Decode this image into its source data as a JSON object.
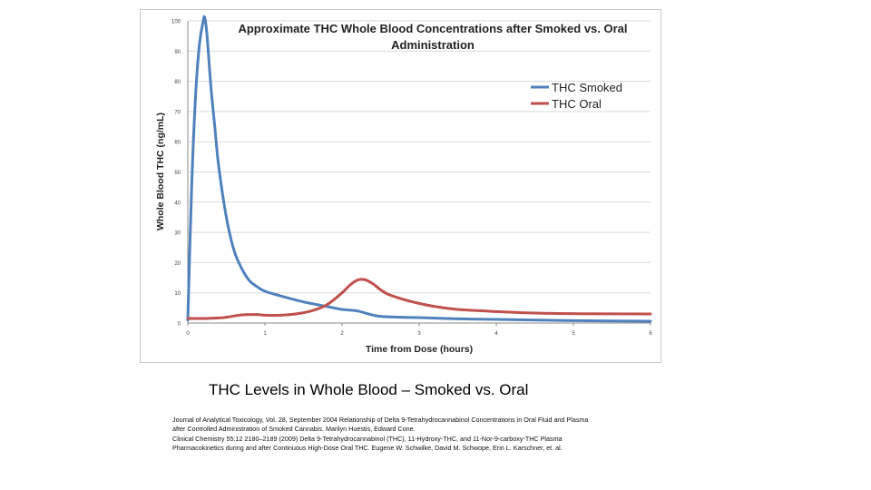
{
  "chart_data": {
    "type": "line",
    "title_line1": "Approximate THC Whole Blood Concentrations after Smoked vs. Oral",
    "title_line2": "Administration",
    "xlabel": "Time from Dose (hours)",
    "ylabel": "Whole Blood THC (ng/mL)",
    "xlim": [
      0,
      6
    ],
    "ylim": [
      0,
      100
    ],
    "x_ticks": [
      0,
      1,
      2,
      3,
      4,
      5,
      6
    ],
    "y_ticks": [
      0,
      10,
      20,
      30,
      40,
      50,
      60,
      70,
      80,
      90,
      100
    ],
    "grid": true,
    "legend_position": "top-right",
    "series": [
      {
        "name": "THC Smoked",
        "color": "#4f81bd",
        "x": [
          0,
          0.05,
          0.1,
          0.15,
          0.2,
          0.22,
          0.25,
          0.3,
          0.35,
          0.4,
          0.5,
          0.6,
          0.7,
          0.8,
          0.9,
          1.0,
          1.2,
          1.5,
          1.8,
          2.0,
          2.2,
          2.5,
          3.0,
          3.5,
          4.0,
          5.0,
          6.0
        ],
        "y": [
          1,
          45,
          75,
          92,
          100,
          101,
          95,
          78,
          65,
          52,
          35,
          24,
          18,
          14,
          12,
          10.5,
          9,
          7,
          5.5,
          4.5,
          4,
          2.2,
          1.8,
          1.4,
          1.2,
          0.8,
          0.6
        ]
      },
      {
        "name": "THC Oral",
        "color": "#c0504d",
        "x": [
          0,
          0.2,
          0.4,
          0.5,
          0.7,
          0.9,
          1.0,
          1.2,
          1.4,
          1.6,
          1.8,
          2.0,
          2.1,
          2.2,
          2.3,
          2.4,
          2.5,
          2.6,
          2.8,
          3.0,
          3.2,
          3.5,
          4.0,
          4.5,
          5.0,
          6.0
        ],
        "y": [
          1.5,
          1.5,
          1.7,
          1.9,
          2.7,
          2.8,
          2.6,
          2.6,
          3.0,
          4.0,
          6.0,
          10.0,
          12.5,
          14.2,
          14.3,
          13.0,
          11.0,
          9.5,
          7.8,
          6.5,
          5.5,
          4.5,
          3.8,
          3.3,
          3.1,
          3.0
        ]
      }
    ]
  },
  "caption": "THC Levels in Whole Blood – Smoked vs. Oral",
  "references": [
    "Journal of Analytical Toxicology, Vol. 28, September 2004 Relationship of Delta 9-Tetrahydrocannabinol Concentrations in Oral Fluid and Plasma after Controlled Administration of Smoked Cannabis. Marilyn Huestis, Edward Cone.",
    "Clinical Chemistry 55:12 2180–2189 (2009) Delta 9-Tetrahydrocannabinol (THC), 11-Hydroxy-THC, and 11-Nor-9-carboxy-THC Plasma Pharmacokinetics during and after Continuous High-Dose Oral THC. Eugene W. Schwilke, David M. Schwope, Erin L. Karschner, et. al."
  ]
}
